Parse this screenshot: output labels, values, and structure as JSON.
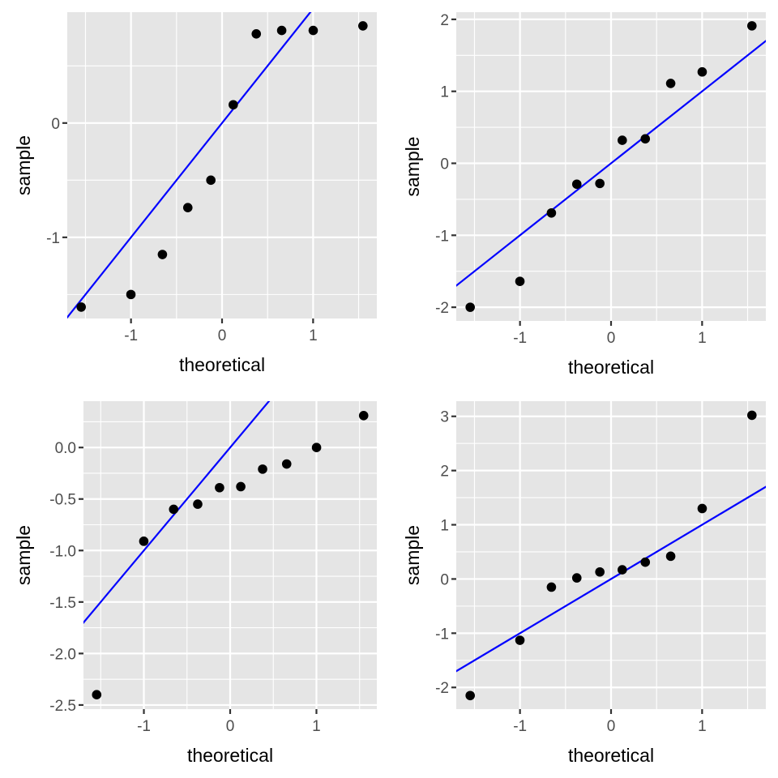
{
  "figure": {
    "description": "2x2 grid of normal Q-Q plots with reference line y = x",
    "colors": {
      "panel_background": "#E5E5E5",
      "grid": "#FFFFFF",
      "points": "#000000",
      "reference_line": "#0000FF",
      "tick_label": "#4D4D4D"
    }
  },
  "chart_data": [
    {
      "type": "scatter",
      "panel": "top-left",
      "title": "",
      "xlabel": "theoretical",
      "ylabel": "sample",
      "xlim": [
        -1.7,
        1.7
      ],
      "ylim": [
        -1.71,
        0.97
      ],
      "x_ticks": [
        -1,
        0,
        1
      ],
      "x_tick_labels": [
        "-1",
        "0",
        "1"
      ],
      "y_ticks": [
        -1,
        0
      ],
      "y_tick_labels": [
        "-1",
        "0"
      ],
      "x_minor": [
        -1.5,
        -0.5,
        0.5,
        1.5
      ],
      "y_minor": [
        -1.5,
        -0.5,
        0.5
      ],
      "grid": true,
      "reference_line": {
        "intercept": 0,
        "slope": 1
      },
      "points": {
        "x": [
          -1.547,
          -1.001,
          -0.655,
          -0.376,
          -0.123,
          0.123,
          0.376,
          0.655,
          1.001,
          1.547
        ],
        "y": [
          -1.61,
          -1.5,
          -1.15,
          -0.74,
          -0.5,
          0.16,
          0.78,
          0.81,
          0.81,
          0.85
        ]
      }
    },
    {
      "type": "scatter",
      "panel": "top-right",
      "title": "",
      "xlabel": "theoretical",
      "ylabel": "sample",
      "xlim": [
        -1.7,
        1.7
      ],
      "ylim": [
        -2.19,
        2.1
      ],
      "x_ticks": [
        -1,
        0,
        1
      ],
      "x_tick_labels": [
        "-1",
        "0",
        "1"
      ],
      "y_ticks": [
        -2,
        -1,
        0,
        1,
        2
      ],
      "y_tick_labels": [
        "-2",
        "-1",
        "0",
        "1",
        "2"
      ],
      "x_minor": [
        -1.5,
        -0.5,
        0.5,
        1.5
      ],
      "y_minor": [
        -1.5,
        -0.5,
        0.5,
        1.5
      ],
      "grid": true,
      "reference_line": {
        "intercept": 0,
        "slope": 1
      },
      "points": {
        "x": [
          -1.547,
          -1.001,
          -0.655,
          -0.376,
          -0.123,
          0.123,
          0.376,
          0.655,
          1.001,
          1.547
        ],
        "y": [
          -2.0,
          -1.64,
          -0.69,
          -0.29,
          -0.28,
          0.32,
          0.34,
          1.11,
          1.27,
          1.91
        ]
      }
    },
    {
      "type": "scatter",
      "panel": "bottom-left",
      "title": "",
      "xlabel": "theoretical",
      "ylabel": "sample",
      "xlim": [
        -1.7,
        1.7
      ],
      "ylim": [
        -2.54,
        0.45
      ],
      "x_ticks": [
        -1,
        0,
        1
      ],
      "x_tick_labels": [
        "-1",
        "0",
        "1"
      ],
      "y_ticks": [
        -2.5,
        -2.0,
        -1.5,
        -1.0,
        -0.5,
        0.0
      ],
      "y_tick_labels": [
        "-2.5",
        "-2.0",
        "-1.5",
        "-1.0",
        "-0.5",
        "0.0"
      ],
      "x_minor": [
        -1.5,
        -0.5,
        0.5,
        1.5
      ],
      "y_minor": [
        -2.25,
        -1.75,
        -1.25,
        -0.75,
        -0.25,
        0.25
      ],
      "grid": true,
      "reference_line": {
        "intercept": 0,
        "slope": 1
      },
      "points": {
        "x": [
          -1.547,
          -1.001,
          -0.655,
          -0.376,
          -0.123,
          0.123,
          0.376,
          0.655,
          1.001,
          1.547
        ],
        "y": [
          -2.4,
          -0.91,
          -0.6,
          -0.55,
          -0.39,
          -0.38,
          -0.21,
          -0.16,
          0.0,
          0.31
        ]
      }
    },
    {
      "type": "scatter",
      "panel": "bottom-right",
      "title": "",
      "xlabel": "theoretical",
      "ylabel": "sample",
      "xlim": [
        -1.7,
        1.7
      ],
      "ylim": [
        -2.4,
        3.28
      ],
      "x_ticks": [
        -1,
        0,
        1
      ],
      "x_tick_labels": [
        "-1",
        "0",
        "1"
      ],
      "y_ticks": [
        -2,
        -1,
        0,
        1,
        2,
        3
      ],
      "y_tick_labels": [
        "-2",
        "-1",
        "0",
        "1",
        "2",
        "3"
      ],
      "x_minor": [
        -1.5,
        -0.5,
        0.5,
        1.5
      ],
      "y_minor": [
        -1.5,
        -0.5,
        0.5,
        1.5,
        2.5
      ],
      "grid": true,
      "reference_line": {
        "intercept": 0,
        "slope": 1
      },
      "points": {
        "x": [
          -1.547,
          -1.001,
          -0.655,
          -0.376,
          -0.123,
          0.123,
          0.376,
          0.655,
          1.001,
          1.547
        ],
        "y": [
          -2.15,
          -1.13,
          -0.15,
          0.02,
          0.13,
          0.17,
          0.31,
          0.42,
          1.3,
          3.02
        ]
      }
    }
  ]
}
